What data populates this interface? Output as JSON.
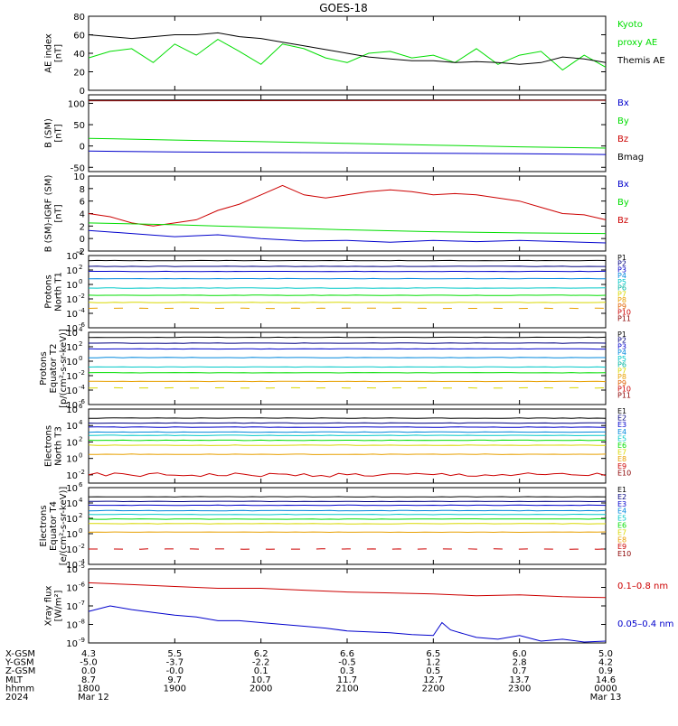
{
  "title": "GOES-18",
  "colors": {
    "black": "#000000",
    "green": "#00dd00",
    "red": "#cc0000",
    "darkred": "#8b0000",
    "blue": "#0000cc",
    "navy": "#000080",
    "cyan": "#00c8c8",
    "teal": "#00b4a0",
    "yellow": "#d8d800",
    "orange": "#e8a000"
  },
  "chart_data": [
    {
      "type": "line",
      "ylabel": [
        "AE index",
        "[nT]"
      ],
      "ylim": [
        0,
        80
      ],
      "yticks": [
        "0",
        "20",
        "40",
        "60",
        "80"
      ],
      "legend": [
        {
          "label": "Kyoto",
          "color": "#00dd00"
        },
        {
          "label": "proxy AE",
          "color": "#00dd00"
        },
        {
          "label": "Themis AE",
          "color": "#000000"
        }
      ],
      "series": [
        {
          "name": "Kyoto proxy AE",
          "color": "#00dd00",
          "x": [
            18.0,
            18.25,
            18.5,
            18.75,
            19.0,
            19.25,
            19.5,
            19.75,
            20.0,
            20.25,
            20.5,
            20.75,
            21.0,
            21.25,
            21.5,
            21.75,
            22.0,
            22.25,
            22.5,
            22.75,
            23.0,
            23.25,
            23.5,
            23.75,
            24.0
          ],
          "values": [
            35,
            42,
            45,
            30,
            50,
            38,
            55,
            42,
            28,
            50,
            45,
            35,
            30,
            40,
            42,
            35,
            38,
            30,
            45,
            28,
            38,
            42,
            22,
            38,
            25
          ]
        },
        {
          "name": "Themis AE",
          "color": "#000000",
          "x": [
            18.0,
            18.25,
            18.5,
            18.75,
            19.0,
            19.25,
            19.5,
            19.75,
            20.0,
            20.25,
            20.5,
            20.75,
            21.0,
            21.25,
            21.5,
            21.75,
            22.0,
            22.25,
            22.5,
            22.75,
            23.0,
            23.25,
            23.5,
            23.75,
            24.0
          ],
          "values": [
            60,
            58,
            56,
            58,
            60,
            60,
            62,
            58,
            56,
            52,
            48,
            44,
            40,
            36,
            34,
            32,
            32,
            30,
            31,
            30,
            28,
            30,
            36,
            34,
            30
          ]
        }
      ]
    },
    {
      "type": "line",
      "ylabel": [
        "B (SM)",
        "[nT]"
      ],
      "ylim": [
        -60,
        120
      ],
      "yticks": [
        "-50",
        "0",
        "50",
        "100"
      ],
      "ytick_values": [
        -50,
        0,
        50,
        100
      ],
      "legend": [
        {
          "label": "Bx",
          "color": "#0000cc"
        },
        {
          "label": "By",
          "color": "#00dd00"
        },
        {
          "label": "Bz",
          "color": "#cc0000"
        },
        {
          "label": "Bmag",
          "color": "#000000"
        }
      ],
      "series": [
        {
          "name": "Bmag",
          "color": "#000000",
          "x": [
            18,
            24
          ],
          "values": [
            108,
            108
          ]
        },
        {
          "name": "Bz",
          "color": "#8b0000",
          "x": [
            18,
            24
          ],
          "values": [
            106,
            107
          ]
        },
        {
          "name": "By",
          "color": "#00dd00",
          "x": [
            18,
            19,
            20,
            21,
            22,
            23,
            24
          ],
          "values": [
            18,
            14,
            10,
            6,
            2,
            -2,
            -5
          ]
        },
        {
          "name": "Bx",
          "color": "#0000cc",
          "x": [
            18,
            19,
            20,
            21,
            22,
            23,
            24
          ],
          "values": [
            -12,
            -14,
            -15,
            -16,
            -17,
            -18,
            -20
          ]
        }
      ]
    },
    {
      "type": "line",
      "ylabel": [
        "B (SM)-IGRF (SM)",
        "[nT]"
      ],
      "ylim": [
        -2,
        10
      ],
      "yticks": [
        "-2",
        "0",
        "2",
        "4",
        "6",
        "8",
        "10"
      ],
      "legend": [
        {
          "label": "Bx",
          "color": "#0000cc"
        },
        {
          "label": "By",
          "color": "#00dd00"
        },
        {
          "label": "Bz",
          "color": "#cc0000"
        }
      ],
      "series": [
        {
          "name": "Bz",
          "color": "#cc0000",
          "x": [
            18.0,
            18.25,
            18.5,
            18.75,
            19.0,
            19.25,
            19.5,
            19.75,
            20.0,
            20.25,
            20.5,
            20.75,
            21.0,
            21.25,
            21.5,
            21.75,
            22.0,
            22.25,
            22.5,
            22.75,
            23.0,
            23.25,
            23.5,
            23.75,
            24.0
          ],
          "values": [
            4,
            3.5,
            2.5,
            2,
            2.5,
            3,
            4.5,
            5.5,
            7,
            8.5,
            7,
            6.5,
            7,
            7.5,
            7.8,
            7.5,
            7,
            7.2,
            7,
            6.5,
            6,
            5,
            4,
            3.8,
            3
          ]
        },
        {
          "name": "By",
          "color": "#00dd00",
          "x": [
            18,
            19,
            20,
            21,
            22,
            23,
            24
          ],
          "values": [
            2.5,
            2.2,
            1.8,
            1.4,
            1.1,
            0.9,
            0.8
          ]
        },
        {
          "name": "Bx",
          "color": "#0000cc",
          "x": [
            18.0,
            18.5,
            19.0,
            19.5,
            20.0,
            20.5,
            21.0,
            21.5,
            22.0,
            22.5,
            23.0,
            23.5,
            24.0
          ],
          "values": [
            1.3,
            0.8,
            0.3,
            0.6,
            0,
            -0.4,
            -0.3,
            -0.6,
            -0.3,
            -0.5,
            -0.3,
            -0.5,
            -0.7
          ]
        }
      ]
    },
    {
      "type": "line",
      "scale": "log",
      "ylabel": [
        "Protons",
        "North T1"
      ],
      "ylim_exp": [
        -6,
        4
      ],
      "yticks_exp": [
        4,
        2,
        0,
        -2,
        -4,
        -6
      ],
      "legend": [
        {
          "label": "P1",
          "color": "#000000"
        },
        {
          "label": "P2",
          "color": "#000080"
        },
        {
          "label": "P3",
          "color": "#0000cc"
        },
        {
          "label": "P4",
          "color": "#0088dd"
        },
        {
          "label": "P5",
          "color": "#00c8c8"
        },
        {
          "label": "P6",
          "color": "#00b4a0"
        },
        {
          "label": "P7",
          "color": "#d8d800"
        },
        {
          "label": "P8",
          "color": "#e8a000"
        },
        {
          "label": "P9",
          "color": "#e06000"
        },
        {
          "label": "P10",
          "color": "#cc0000"
        },
        {
          "label": "P11",
          "color": "#8b0000"
        }
      ],
      "series": [
        {
          "name": "P1",
          "color": "#000000",
          "exp": 3.3
        },
        {
          "name": "P2",
          "color": "#000080",
          "exp": 2.5
        },
        {
          "name": "P3",
          "color": "#0000cc",
          "exp": 1.8
        },
        {
          "name": "P4",
          "color": "#0088dd",
          "exp": 0.8
        },
        {
          "name": "P5",
          "color": "#00c8c8",
          "exp": -0.5
        },
        {
          "name": "P6",
          "color": "#00dd00",
          "exp": -1.5
        },
        {
          "name": "P7",
          "color": "#d8d800",
          "exp": -2.5
        },
        {
          "name": "P8",
          "color": "#e8a000",
          "exp": -3.3,
          "dashed": true
        }
      ]
    },
    {
      "type": "line",
      "scale": "log",
      "ylabel": [
        "Protons",
        "Equator T2",
        "[p/(cm²-s-sr-keV)]"
      ],
      "ylim_exp": [
        -6,
        4
      ],
      "yticks_exp": [
        4,
        2,
        0,
        -2,
        -4,
        -6
      ],
      "legend": [
        {
          "label": "P1",
          "color": "#000000"
        },
        {
          "label": "P2",
          "color": "#000080"
        },
        {
          "label": "P3",
          "color": "#0000cc"
        },
        {
          "label": "P4",
          "color": "#0088dd"
        },
        {
          "label": "P5",
          "color": "#00c8c8"
        },
        {
          "label": "P6",
          "color": "#00b4a0"
        },
        {
          "label": "P7",
          "color": "#d8d800"
        },
        {
          "label": "P8",
          "color": "#e8a000"
        },
        {
          "label": "P9",
          "color": "#e06000"
        },
        {
          "label": "P10",
          "color": "#cc0000"
        },
        {
          "label": "P11",
          "color": "#8b0000"
        }
      ],
      "series": [
        {
          "name": "P1",
          "color": "#000000",
          "exp": 3.3
        },
        {
          "name": "P2",
          "color": "#000080",
          "exp": 2.5
        },
        {
          "name": "P3",
          "color": "#0000cc",
          "exp": 1.7
        },
        {
          "name": "P4",
          "color": "#0088dd",
          "exp": 0.5
        },
        {
          "name": "P5",
          "color": "#00c8c8",
          "exp": -0.8
        },
        {
          "name": "P6",
          "color": "#00dd00",
          "exp": -1.6
        },
        {
          "name": "P7",
          "color": "#e8a000",
          "exp": -2.8
        },
        {
          "name": "P8",
          "color": "#d8d800",
          "exp": -3.7,
          "dashed": true
        }
      ]
    },
    {
      "type": "line",
      "scale": "log",
      "ylabel": [
        "Electrons",
        "North T3"
      ],
      "ylim_exp": [
        -3,
        6
      ],
      "yticks_exp": [
        6,
        4,
        2,
        0,
        -2
      ],
      "legend": [
        {
          "label": "E1",
          "color": "#000000"
        },
        {
          "label": "E2",
          "color": "#000080"
        },
        {
          "label": "E3",
          "color": "#0000cc"
        },
        {
          "label": "E4",
          "color": "#0088dd"
        },
        {
          "label": "E5",
          "color": "#00c8c8"
        },
        {
          "label": "E6",
          "color": "#00dd00"
        },
        {
          "label": "E7",
          "color": "#d8d800"
        },
        {
          "label": "E8",
          "color": "#e8a000"
        },
        {
          "label": "E9",
          "color": "#cc0000"
        },
        {
          "label": "E10",
          "color": "#8b0000"
        }
      ],
      "series": [
        {
          "name": "E1",
          "color": "#000000",
          "exp": 4.9
        },
        {
          "name": "E2",
          "color": "#000080",
          "exp": 4.3
        },
        {
          "name": "E3",
          "color": "#0000cc",
          "exp": 3.8
        },
        {
          "name": "E4",
          "color": "#0088dd",
          "exp": 3.2
        },
        {
          "name": "E5",
          "color": "#00c8c8",
          "exp": 2.8
        },
        {
          "name": "E6",
          "color": "#00dd00",
          "exp": 2.2
        },
        {
          "name": "E7",
          "color": "#d8d800",
          "exp": 1.6
        },
        {
          "name": "E8",
          "color": "#e8a000",
          "exp": 0.5
        },
        {
          "name": "E9",
          "color": "#cc0000",
          "exp": -2.0,
          "noisy": true
        }
      ]
    },
    {
      "type": "line",
      "scale": "log",
      "ylabel": [
        "Electrons",
        "Equator T4",
        "[e/(cm²-s-sr-keV)]"
      ],
      "ylim_exp": [
        -4,
        6
      ],
      "yticks_exp": [
        6,
        4,
        2,
        0,
        -2,
        -4
      ],
      "legend": [
        {
          "label": "E1",
          "color": "#000000"
        },
        {
          "label": "E2",
          "color": "#000080"
        },
        {
          "label": "E3",
          "color": "#0000cc"
        },
        {
          "label": "E4",
          "color": "#0088dd"
        },
        {
          "label": "E5",
          "color": "#00c8c8"
        },
        {
          "label": "E6",
          "color": "#00dd00"
        },
        {
          "label": "E7",
          "color": "#d8d800"
        },
        {
          "label": "E8",
          "color": "#e8a000"
        },
        {
          "label": "E9",
          "color": "#cc0000"
        },
        {
          "label": "E10",
          "color": "#8b0000"
        }
      ],
      "series": [
        {
          "name": "E1",
          "color": "#000000",
          "exp": 4.8
        },
        {
          "name": "E2",
          "color": "#000080",
          "exp": 4.2
        },
        {
          "name": "E3",
          "color": "#0000cc",
          "exp": 3.7
        },
        {
          "name": "E4",
          "color": "#0088dd",
          "exp": 3.0
        },
        {
          "name": "E5",
          "color": "#00c8c8",
          "exp": 2.5
        },
        {
          "name": "E6",
          "color": "#00dd00",
          "exp": 1.9
        },
        {
          "name": "E7",
          "color": "#d8d800",
          "exp": 1.3
        },
        {
          "name": "E8",
          "color": "#e8a000",
          "exp": 0.2
        },
        {
          "name": "E9",
          "color": "#cc0000",
          "exp": -2.0,
          "dashed": true
        }
      ]
    },
    {
      "type": "line",
      "scale": "log",
      "ylabel": [
        "Xray flux",
        "[W/m²]"
      ],
      "ylim_exp": [
        -9,
        -5
      ],
      "yticks_exp": [
        -5,
        -6,
        -7,
        -8,
        -9
      ],
      "legend": [
        {
          "label": "0.1–0.8 nm",
          "color": "#cc0000"
        },
        {
          "label": "0.05–0.4 nm",
          "color": "#0000cc"
        }
      ],
      "series": [
        {
          "name": "0.1–0.8 nm",
          "color": "#cc0000",
          "x": [
            18.0,
            18.5,
            19.0,
            19.5,
            20.0,
            20.5,
            21.0,
            21.5,
            22.0,
            22.5,
            23.0,
            23.5,
            24.0
          ],
          "exp_values": [
            -5.75,
            -5.85,
            -5.95,
            -6.05,
            -6.05,
            -6.15,
            -6.25,
            -6.3,
            -6.35,
            -6.45,
            -6.4,
            -6.5,
            -6.55
          ]
        },
        {
          "name": "0.05–0.4 nm",
          "color": "#0000cc",
          "x": [
            18.0,
            18.25,
            18.5,
            18.75,
            19.0,
            19.25,
            19.5,
            19.75,
            20.0,
            20.25,
            20.5,
            20.75,
            21.0,
            21.25,
            21.5,
            21.75,
            22.0,
            22.1,
            22.2,
            22.35,
            22.5,
            22.75,
            23.0,
            23.25,
            23.5,
            23.75,
            24.0
          ],
          "exp_values": [
            -7.3,
            -7.0,
            -7.2,
            -7.35,
            -7.5,
            -7.6,
            -7.8,
            -7.8,
            -7.9,
            -8.0,
            -8.1,
            -8.2,
            -8.35,
            -8.4,
            -8.45,
            -8.55,
            -8.6,
            -7.9,
            -8.3,
            -8.5,
            -8.7,
            -8.8,
            -8.6,
            -8.9,
            -8.8,
            -8.95,
            -8.9
          ]
        }
      ]
    }
  ],
  "x_axis": {
    "range": [
      18,
      24
    ],
    "row_labels": [
      "X-GSM",
      "Y-GSM",
      "Z-GSM",
      "MLT",
      "hhmm",
      "2024"
    ],
    "columns": [
      {
        "x": 18,
        "values": [
          "4.3",
          "-5.0",
          "0.0",
          "8.7",
          "1800",
          "Mar 12"
        ]
      },
      {
        "x": 19,
        "values": [
          "5.5",
          "-3.7",
          "-0.0",
          "9.7",
          "1900",
          ""
        ]
      },
      {
        "x": 20,
        "values": [
          "6.2",
          "-2.2",
          "0.1",
          "10.7",
          "2000",
          ""
        ]
      },
      {
        "x": 21,
        "values": [
          "6.6",
          "-0.5",
          "0.3",
          "11.7",
          "2100",
          ""
        ]
      },
      {
        "x": 22,
        "values": [
          "6.5",
          "1.2",
          "0.5",
          "12.7",
          "2200",
          ""
        ]
      },
      {
        "x": 23,
        "values": [
          "6.0",
          "2.8",
          "0.7",
          "13.7",
          "2300",
          ""
        ]
      },
      {
        "x": 24,
        "values": [
          "5.0",
          "4.2",
          "0.9",
          "14.6",
          "0000",
          "Mar 13"
        ]
      }
    ]
  }
}
